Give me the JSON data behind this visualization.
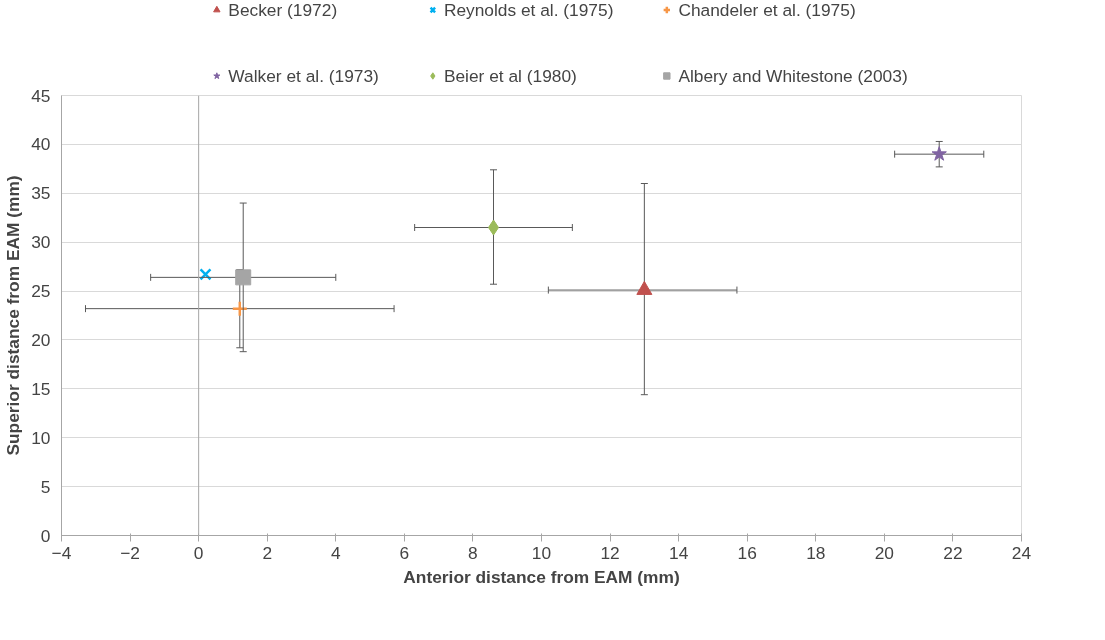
{
  "chart_data": {
    "type": "scatter",
    "xlabel": "Anterior distance from EAM (mm)",
    "ylabel": "Superior distance from EAM (mm)",
    "xlim": [
      -4,
      24
    ],
    "xticks": [
      -4,
      -2,
      0,
      2,
      4,
      6,
      8,
      10,
      12,
      14,
      16,
      18,
      20,
      22,
      24
    ],
    "ylim": [
      0,
      45
    ],
    "yticks": [
      0,
      5,
      10,
      15,
      20,
      25,
      30,
      35,
      40,
      45
    ],
    "grid": "y",
    "legend": "top",
    "ref_lines": [
      {
        "axis": "x",
        "value": 0,
        "label": null,
        "color": "#a6a6a6"
      }
    ],
    "series": [
      {
        "name": "Becker (1972)",
        "color": "#c0504d",
        "marker": "triangle",
        "x": [
          13.0
        ],
        "values": [
          25.1
        ],
        "errors": [
          [
            14.4,
            36.0
          ]
        ],
        "xerrors": [
          [
            10.2,
            15.7
          ]
        ]
      },
      {
        "name": "Reynolds et al. (1975)",
        "color": "#00b0f0",
        "marker": "x",
        "x": [
          0.2
        ],
        "values": [
          26.7
        ]
      },
      {
        "name": "Chandeler et al. (1975)",
        "color": "#f79646",
        "marker": "cross",
        "x": [
          1.2
        ],
        "values": [
          23.2
        ],
        "errors": [
          [
            19.2,
            27.2
          ]
        ],
        "xerrors": [
          [
            -3.3,
            5.7
          ]
        ]
      },
      {
        "name": "Walker et al. (1973)",
        "color": "#8064a2",
        "marker": "star",
        "x": [
          21.6
        ],
        "values": [
          39.0
        ],
        "errors": [
          [
            37.7,
            40.3
          ]
        ],
        "xerrors": [
          [
            20.3,
            22.9
          ]
        ]
      },
      {
        "name": "Beier et al (1980)",
        "color": "#9bbb59",
        "marker": "diamond",
        "x": [
          8.6
        ],
        "values": [
          31.5
        ],
        "errors": [
          [
            25.7,
            37.4
          ]
        ],
        "xerrors": [
          [
            6.3,
            10.9
          ]
        ]
      },
      {
        "name": "Albery and Whitestone (2003)",
        "color": "#a5a5a5",
        "marker": "square",
        "x": [
          1.3
        ],
        "values": [
          26.4
        ],
        "errors": [
          [
            18.8,
            34.0
          ]
        ],
        "xerrors": [
          [
            -1.4,
            4.0
          ]
        ]
      }
    ]
  }
}
